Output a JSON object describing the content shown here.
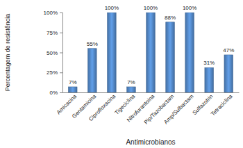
{
  "chart_data": {
    "type": "bar",
    "x_label": "Antimicrobianos",
    "y_label": "Percentagem de resistência",
    "categories": [
      "Amicacina",
      "Gentamicina",
      "Ciprofloxacina",
      "Tigeciclina",
      "Nitrofurantoina",
      "Pip/Tazobactam",
      "Amp/Sulbactam",
      "Sulfazotrin",
      "Tetraciclina"
    ],
    "values": [
      7,
      55,
      100,
      7,
      100,
      88,
      100,
      31,
      47
    ],
    "value_labels": [
      "7%",
      "55%",
      "100%",
      "7%",
      "100%",
      "88%",
      "100%",
      "31%",
      "47%"
    ],
    "color": "#4f81bd",
    "ylim": [
      0,
      100
    ],
    "yticks": [
      {
        "value": 0,
        "label": "0%"
      },
      {
        "value": 25,
        "label": "25%"
      },
      {
        "value": 50,
        "label": "50%"
      },
      {
        "value": 75,
        "label": "75%"
      },
      {
        "value": 100,
        "label": "100%"
      }
    ],
    "grid": false,
    "data_labels": true
  }
}
